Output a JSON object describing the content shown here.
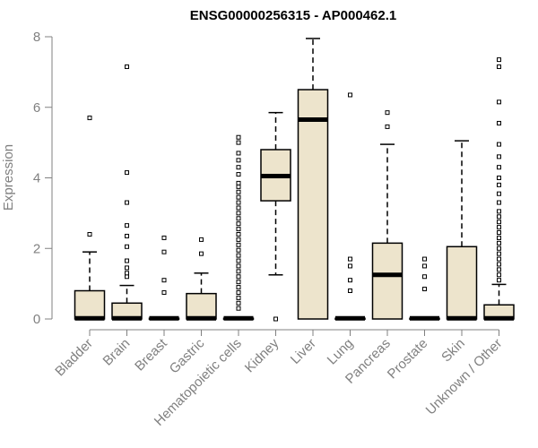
{
  "chart_data": {
    "type": "boxplot",
    "title": "ENSG00000256315 - AP000462.1",
    "xlabel": "",
    "ylabel": "Expression",
    "ylim": [
      0,
      8
    ],
    "yticks": [
      0,
      2,
      4,
      6,
      8
    ],
    "categories": [
      "Bladder",
      "Brain",
      "Breast",
      "Gastric",
      "Hematopoietic cells",
      "Kidney",
      "Liver",
      "Lung",
      "Pancreas",
      "Prostate",
      "Skin",
      "Unknown / Other"
    ],
    "boxes": [
      {
        "q1": 0,
        "median": 0.02,
        "q3": 0.8,
        "whisker_low": 0,
        "whisker_high": 1.9,
        "outliers": [
          2.4,
          5.7
        ]
      },
      {
        "q1": 0,
        "median": 0.02,
        "q3": 0.45,
        "whisker_low": 0,
        "whisker_high": 0.95,
        "outliers": [
          1.2,
          1.3,
          1.45,
          1.65,
          2.05,
          2.35,
          2.65,
          3.3,
          4.15,
          7.15
        ]
      },
      {
        "q1": 0,
        "median": 0.02,
        "q3": 0.02,
        "whisker_low": 0,
        "whisker_high": 0.02,
        "outliers": [
          0.75,
          1.1,
          1.9,
          2.3
        ]
      },
      {
        "q1": 0,
        "median": 0.02,
        "q3": 0.72,
        "whisker_low": 0,
        "whisker_high": 1.3,
        "outliers": [
          1.85,
          2.25
        ]
      },
      {
        "q1": 0,
        "median": 0.02,
        "q3": 0.02,
        "whisker_low": 0,
        "whisker_high": 0.02,
        "outliers": [
          0.3,
          0.45,
          0.6,
          0.75,
          0.9,
          1.05,
          1.2,
          1.35,
          1.5,
          1.65,
          1.8,
          1.95,
          2.1,
          2.25,
          2.4,
          2.55,
          2.7,
          2.85,
          3.0,
          3.15,
          3.3,
          3.45,
          3.6,
          3.75,
          3.85,
          4.1,
          4.3,
          4.5,
          4.7,
          5.0,
          5.15
        ]
      },
      {
        "q1": 3.35,
        "median": 4.05,
        "q3": 4.8,
        "whisker_low": 1.25,
        "whisker_high": 5.85,
        "outliers": [
          0
        ]
      },
      {
        "q1": 0,
        "median": 5.65,
        "q3": 6.5,
        "whisker_low": 0,
        "whisker_high": 7.95,
        "outliers": []
      },
      {
        "q1": 0,
        "median": 0.02,
        "q3": 0.02,
        "whisker_low": 0,
        "whisker_high": 0.02,
        "outliers": [
          0.8,
          1.1,
          1.5,
          1.7,
          6.35
        ]
      },
      {
        "q1": 0,
        "median": 1.25,
        "q3": 2.15,
        "whisker_low": 0,
        "whisker_high": 4.95,
        "outliers": [
          5.45,
          5.85
        ]
      },
      {
        "q1": 0,
        "median": 0.02,
        "q3": 0.02,
        "whisker_low": 0,
        "whisker_high": 0.02,
        "outliers": [
          0.85,
          1.2,
          1.5,
          1.7
        ]
      },
      {
        "q1": 0,
        "median": 0.02,
        "q3": 2.05,
        "whisker_low": 0,
        "whisker_high": 5.05,
        "outliers": []
      },
      {
        "q1": 0,
        "median": 0.02,
        "q3": 0.4,
        "whisker_low": 0,
        "whisker_high": 0.98,
        "outliers": [
          1.1,
          1.25,
          1.4,
          1.55,
          1.7,
          1.85,
          2.0,
          2.15,
          2.3,
          2.45,
          2.6,
          2.75,
          2.9,
          3.05,
          3.3,
          3.55,
          3.8,
          4.0,
          4.3,
          4.6,
          4.95,
          5.55,
          6.15,
          7.15,
          7.35
        ]
      }
    ],
    "colors": {
      "box_fill": "#ede4cc",
      "box_stroke": "#000000",
      "axis": "#808080"
    }
  }
}
